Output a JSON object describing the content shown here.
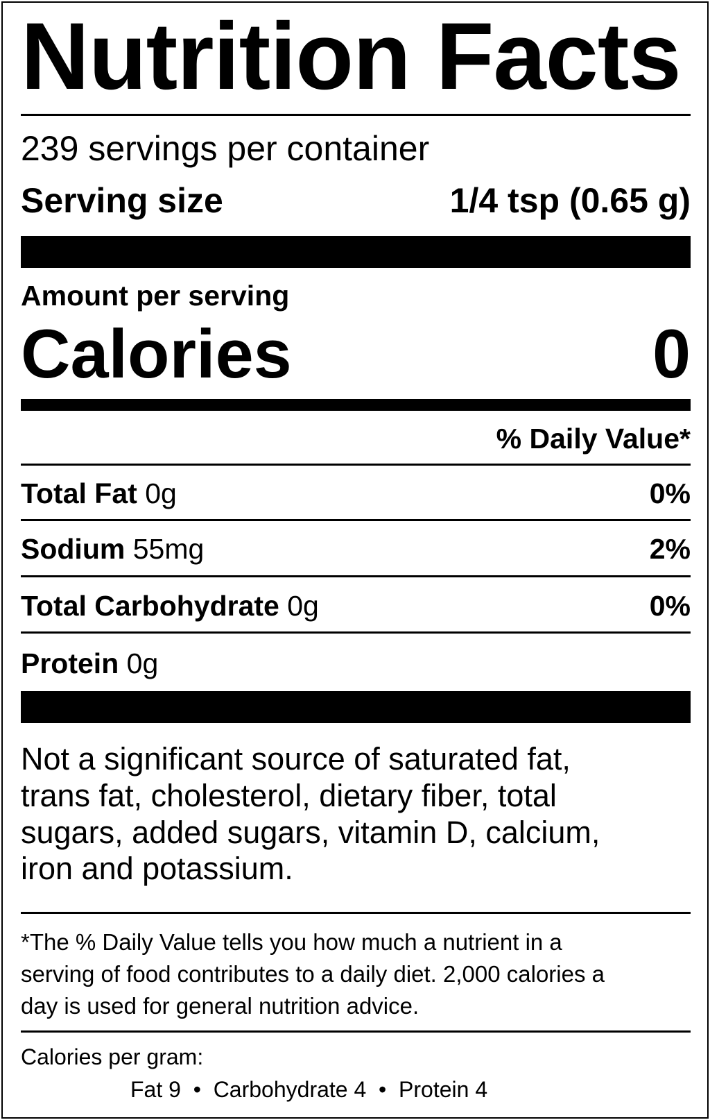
{
  "title": "Nutrition Facts",
  "servings_per_container": "239 servings per container",
  "serving_size": {
    "label": "Serving size",
    "value": "1/4 tsp (0.65 g)"
  },
  "amount_per_serving": "Amount per serving",
  "calories": {
    "label": "Calories",
    "value": "0"
  },
  "daily_value_header": "% Daily Value*",
  "nutrients": [
    {
      "name": "Total Fat",
      "amount": "0g",
      "dv": "0%"
    },
    {
      "name": "Sodium",
      "amount": "55mg",
      "dv": "2%"
    },
    {
      "name": "Total Carbohydrate",
      "amount": "0g",
      "dv": "0%"
    },
    {
      "name": "Protein",
      "amount": "0g",
      "dv": ""
    }
  ],
  "not_significant": [
    "Not a significant source of saturated fat,",
    "trans fat, cholesterol, dietary fiber, total",
    "sugars, added sugars, vitamin D, calcium,",
    "iron and potassium."
  ],
  "footnote": [
    "*The % Daily Value tells you how much a nutrient in a",
    "serving of food contributes to a daily diet. 2,000 calories a",
    "day is used for general nutrition advice."
  ],
  "calories_per_gram": {
    "label": "Calories per gram:",
    "line": "Fat 9  •  Carbohydrate 4  •  Protein 4"
  }
}
